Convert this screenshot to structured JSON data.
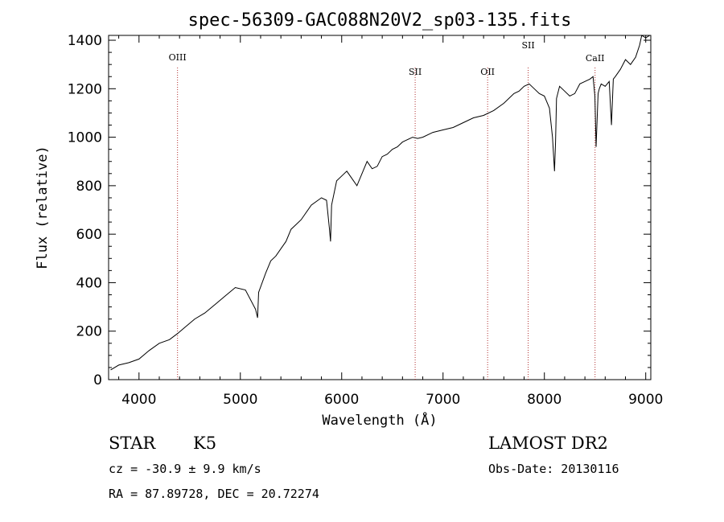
{
  "chart_data": {
    "type": "line",
    "title": "spec-56309-GAC088N20V2_sp03-135.fits",
    "xlabel": "Wavelength (Å)",
    "ylabel": "Flux (relative)",
    "xlim": [
      3700,
      9050
    ],
    "ylim": [
      0,
      1420
    ],
    "x_ticks": [
      4000,
      5000,
      6000,
      7000,
      8000,
      9000
    ],
    "y_ticks": [
      0,
      200,
      400,
      600,
      800,
      1000,
      1200,
      1400
    ],
    "x_tick_labels": [
      "4000",
      "5000",
      "6000",
      "7000",
      "8000",
      "9000"
    ],
    "y_tick_labels": [
      "0",
      "200",
      "400",
      "600",
      "800",
      "1000",
      "1200",
      "1400"
    ],
    "grid": false,
    "series": [
      {
        "color": "#000000",
        "x": [
          3720,
          3800,
          3900,
          4000,
          4100,
          4200,
          4300,
          4380,
          4450,
          4550,
          4650,
          4750,
          4850,
          4950,
          5050,
          5150,
          5170,
          5180,
          5250,
          5300,
          5350,
          5400,
          5450,
          5500,
          5550,
          5600,
          5700,
          5800,
          5850,
          5880,
          5890,
          5900,
          5950,
          6000,
          6050,
          6100,
          6150,
          6200,
          6250,
          6300,
          6350,
          6400,
          6450,
          6500,
          6550,
          6600,
          6650,
          6700,
          6750,
          6800,
          6900,
          7000,
          7100,
          7200,
          7300,
          7400,
          7500,
          7600,
          7700,
          7750,
          7800,
          7850,
          7900,
          7950,
          8000,
          8050,
          8080,
          8100,
          8110,
          8120,
          8150,
          8200,
          8250,
          8300,
          8350,
          8400,
          8450,
          8480,
          8498,
          8510,
          8530,
          8542,
          8560,
          8600,
          8640,
          8662,
          8680,
          8700,
          8750,
          8800,
          8850,
          8900,
          8940,
          8960,
          9000,
          9040
        ],
        "y": [
          40,
          60,
          70,
          85,
          120,
          150,
          165,
          190,
          215,
          250,
          275,
          310,
          345,
          380,
          370,
          290,
          255,
          360,
          440,
          490,
          510,
          540,
          570,
          620,
          640,
          660,
          720,
          750,
          740,
          620,
          570,
          720,
          820,
          840,
          860,
          830,
          800,
          850,
          900,
          870,
          880,
          920,
          930,
          950,
          960,
          980,
          990,
          1000,
          995,
          1000,
          1020,
          1030,
          1040,
          1060,
          1080,
          1090,
          1110,
          1140,
          1180,
          1190,
          1210,
          1220,
          1200,
          1180,
          1170,
          1120,
          1000,
          860,
          980,
          1160,
          1210,
          1190,
          1170,
          1180,
          1220,
          1230,
          1240,
          1250,
          1170,
          960,
          1180,
          1200,
          1220,
          1210,
          1230,
          1050,
          1240,
          1250,
          1280,
          1320,
          1300,
          1330,
          1380,
          1420,
          1410,
          1420
        ]
      }
    ],
    "reference_lines": [
      {
        "label": "OIII",
        "x": 4380
      },
      {
        "label": "SII",
        "x": 6725
      },
      {
        "label": "OII",
        "x": 7440
      },
      {
        "label": "SII",
        "x": 7840
      },
      {
        "label": "CaII",
        "x": 8500
      }
    ]
  },
  "meta": {
    "object_class": "STAR",
    "subclass": "K5",
    "survey": "LAMOST DR2",
    "cz": "cz = -30.9 ± 9.9 km/s",
    "obs_date": "Obs-Date: 20130116",
    "coords": "RA =  87.89728, DEC =  20.72274"
  },
  "colors": {
    "spectrum": "#000000",
    "reference_line": "#b03030"
  }
}
